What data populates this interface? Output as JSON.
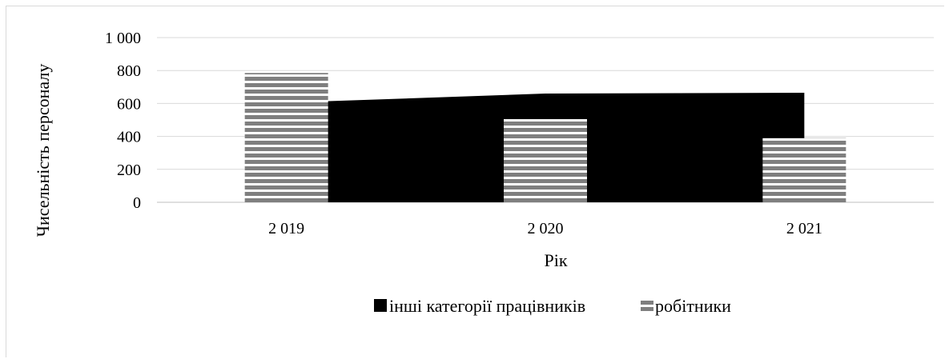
{
  "chart_data": {
    "type": "bar",
    "categories": [
      "2 019",
      "2 020",
      "2 021"
    ],
    "series": [
      {
        "name": "інші категорії працівників",
        "chart": "area",
        "values": [
          605,
          660,
          665
        ],
        "color": "#000000"
      },
      {
        "name": "робітники",
        "chart": "bar",
        "values": [
          785,
          505,
          390
        ],
        "color": "#7f7f7f",
        "pattern": "horizontal-stripes"
      }
    ],
    "xlabel": "Рік",
    "ylabel": "Чисельність персоналу",
    "ylim": [
      0,
      1000
    ],
    "yticks": [
      "0",
      "200",
      "400",
      "600",
      "800",
      "1 000"
    ],
    "grid": true,
    "legend": "bottom"
  }
}
